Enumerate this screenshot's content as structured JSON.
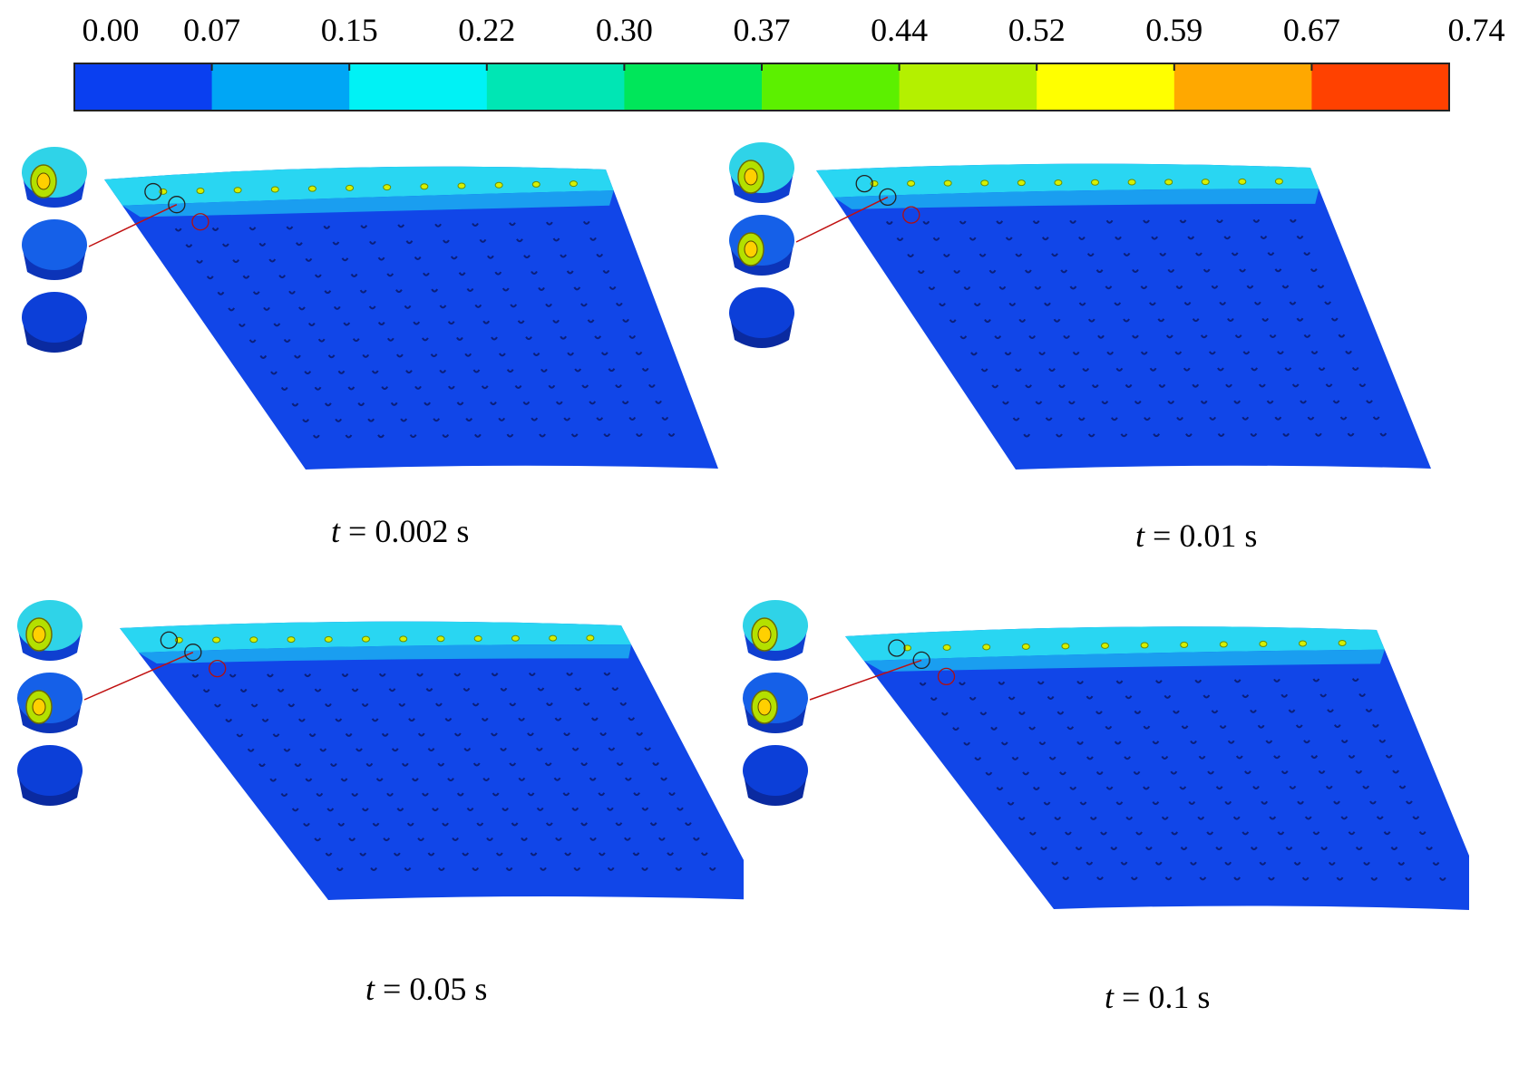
{
  "colorbar": {
    "ticks": [
      "0.00",
      "0.07",
      "0.15",
      "0.22",
      "0.30",
      "0.37",
      "0.44",
      "0.52",
      "0.59",
      "0.67",
      "0.74"
    ],
    "colors": [
      "#0a3ff0",
      "#00a6f5",
      "#00f2f5",
      "#00e6b4",
      "#00e65a",
      "#5cf000",
      "#b4f000",
      "#ffff00",
      "#ffa800",
      "#ff4100"
    ]
  },
  "panels": [
    {
      "t_symbol": "t",
      "t_value": "= 0.002 s"
    },
    {
      "t_symbol": "t",
      "t_value": "= 0.01 s"
    },
    {
      "t_symbol": "t",
      "t_value": "= 0.05 s"
    },
    {
      "t_symbol": "t",
      "t_value": "= 0.1 s"
    }
  ],
  "colors": {
    "field_base": "#1146e8",
    "band_light": "#29d6f2",
    "band_mid": "#1a9ef0",
    "hole": "#0b1f7a",
    "leader": "#c01010"
  }
}
